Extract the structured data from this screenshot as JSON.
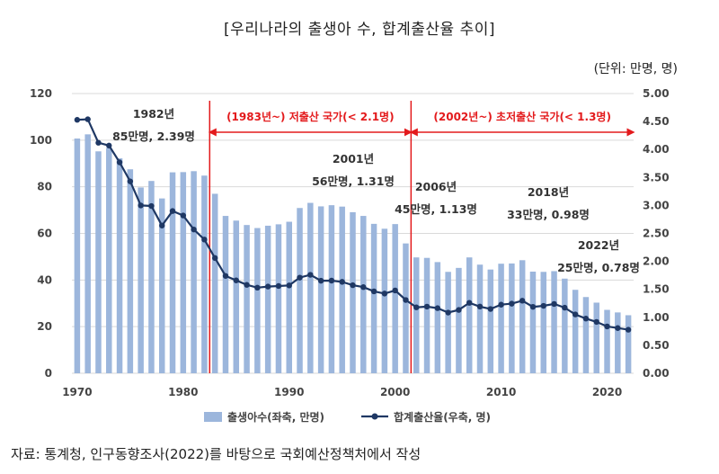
{
  "chart_data": {
    "type": "bar+line",
    "title": "[우리나라의 출생아 수, 합계출산율 추이]",
    "unit_label": "(단위: 만명, 명)",
    "source": "자료: 통계청, 인구동향조사(2022)를 바탕으로 국회예산정책처에서 작성",
    "x_ticks": [
      "1970",
      "1980",
      "1990",
      "2000",
      "2010",
      "2020"
    ],
    "y_left": {
      "min": 0,
      "max": 120,
      "ticks": [
        "0",
        "20",
        "40",
        "60",
        "80",
        "100",
        "120"
      ]
    },
    "y_right": {
      "min": 0,
      "max": 5,
      "ticks": [
        "0.00",
        "0.50",
        "1.00",
        "1.50",
        "2.00",
        "2.50",
        "3.00",
        "3.50",
        "4.00",
        "4.50",
        "5.00"
      ]
    },
    "years": [
      1970,
      1971,
      1972,
      1973,
      1974,
      1975,
      1976,
      1977,
      1978,
      1979,
      1980,
      1981,
      1982,
      1983,
      1984,
      1985,
      1986,
      1987,
      1988,
      1989,
      1990,
      1991,
      1992,
      1993,
      1994,
      1995,
      1996,
      1997,
      1998,
      1999,
      2000,
      2001,
      2002,
      2003,
      2004,
      2005,
      2006,
      2007,
      2008,
      2009,
      2010,
      2011,
      2012,
      2013,
      2014,
      2015,
      2016,
      2017,
      2018,
      2019,
      2020,
      2021,
      2022
    ],
    "series": [
      {
        "name": "출생아수(좌축, 만명)",
        "axis": "left",
        "type": "bar",
        "color": "#9cb6dc",
        "values": [
          100.7,
          102.5,
          95.2,
          96.7,
          92.2,
          87.5,
          79.7,
          82.5,
          75.0,
          86.2,
          86.3,
          86.7,
          84.8,
          77.0,
          67.5,
          65.5,
          63.6,
          62.3,
          63.3,
          63.9,
          65.0,
          70.9,
          73.1,
          71.6,
          72.1,
          71.5,
          69.1,
          67.5,
          64.1,
          62.0,
          64.0,
          55.7,
          49.7,
          49.5,
          47.7,
          43.5,
          45.2,
          49.7,
          46.6,
          44.5,
          47.0,
          47.1,
          48.5,
          43.6,
          43.5,
          43.8,
          40.6,
          35.8,
          32.7,
          30.3,
          27.2,
          26.1,
          24.9
        ]
      },
      {
        "name": "합계출산율(우축, 명)",
        "axis": "right",
        "type": "line",
        "color": "#1f3864",
        "values": [
          4.53,
          4.54,
          4.12,
          4.07,
          3.77,
          3.43,
          3.0,
          2.99,
          2.64,
          2.9,
          2.82,
          2.57,
          2.39,
          2.06,
          1.74,
          1.66,
          1.58,
          1.53,
          1.55,
          1.56,
          1.57,
          1.71,
          1.76,
          1.654,
          1.656,
          1.634,
          1.574,
          1.54,
          1.464,
          1.425,
          1.48,
          1.31,
          1.178,
          1.191,
          1.164,
          1.085,
          1.132,
          1.259,
          1.192,
          1.149,
          1.226,
          1.244,
          1.297,
          1.187,
          1.205,
          1.239,
          1.172,
          1.052,
          0.977,
          0.918,
          0.837,
          0.808,
          0.778
        ]
      }
    ],
    "periods": [
      {
        "label": "(1983년~) 저출산 국가(< 2.1명)",
        "start_year": 1982.5,
        "end_year": 2001.5
      },
      {
        "label": "(2002년~) 초저출산 국가(< 1.3명)",
        "start_year": 2001.5,
        "end_year": 2022.5
      }
    ],
    "annotations": [
      {
        "year_label": "1982년",
        "value_label": "85만명, 2.39명",
        "year": 1982
      },
      {
        "year_label": "2001년",
        "value_label": "56만명, 1.31명",
        "year": 2001
      },
      {
        "year_label": "2006년",
        "value_label": "45만명, 1.13명",
        "year": 2006
      },
      {
        "year_label": "2018년",
        "value_label": "33만명, 0.98명",
        "year": 2018
      },
      {
        "year_label": "2022년",
        "value_label": "25만명, 0.78명",
        "year": 2022
      }
    ],
    "legend_position": "bottom-center",
    "colors": {
      "bar": "#9cb6dc",
      "line": "#1f3864",
      "period": "#e31a1c",
      "grid": "#d9d9d9"
    }
  }
}
